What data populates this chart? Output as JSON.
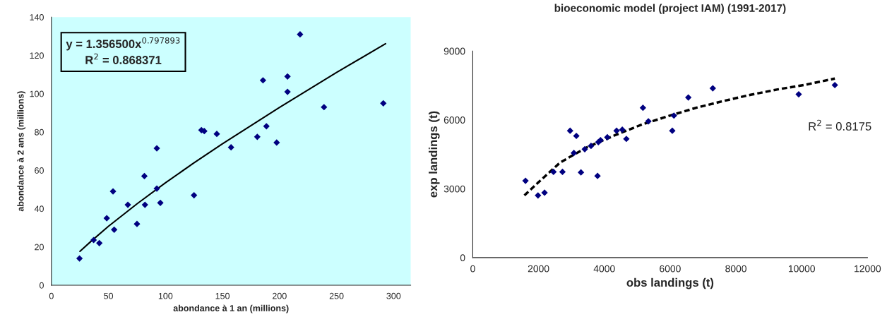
{
  "chart_data": [
    {
      "type": "scatter",
      "xlabel": "abondance à 1 an (millions)",
      "ylabel": "abondance à 2 ans (millions)",
      "xlim": [
        0,
        315
      ],
      "ylim": [
        0,
        140
      ],
      "xticks": [
        0,
        50,
        100,
        150,
        200,
        250,
        300
      ],
      "yticks": [
        0,
        20,
        40,
        60,
        80,
        100,
        120,
        140
      ],
      "grid": false,
      "legend": false,
      "marker": "diamond",
      "annotations": [
        "y = 1.356500x$^{0.797893}$",
        "R$^{2}$ = 0.868371"
      ],
      "series": [
        {
          "color": "#000080",
          "x": [
            24.6,
            37,
            42,
            48.5,
            54,
            55,
            67,
            75,
            81.5,
            82,
            92.4,
            92.4,
            95.5,
            125,
            131.5,
            134,
            145,
            157.5,
            180.5,
            185.5,
            188.5,
            197.5,
            207,
            207,
            218,
            239,
            291
          ],
          "values": [
            14,
            23.6,
            22,
            35,
            49,
            29,
            42,
            32,
            57,
            42,
            71.5,
            50.5,
            43,
            47,
            81,
            80.5,
            79,
            72,
            77.5,
            107,
            83,
            74.5,
            109,
            101,
            131,
            93,
            95
          ]
        },
        {
          "type": "line",
          "color": "#000000",
          "line_style": "solid",
          "marker": "none",
          "x": [
            25,
            35,
            50,
            75,
            100,
            125,
            150,
            200,
            250,
            293
          ],
          "values": [
            17.7,
            23.1,
            30.8,
            42.5,
            53.5,
            63.9,
            73.9,
            92.9,
            111.1,
            126.1
          ]
        }
      ]
    },
    {
      "type": "scatter",
      "title": "bioeconomic model (project IAM) (1991-2017)",
      "xlabel": "obs landings (t)",
      "ylabel": "exp landings (t)",
      "xlim": [
        0,
        12000
      ],
      "ylim": [
        0,
        9000
      ],
      "xticks": [
        0,
        2000,
        4000,
        6000,
        8000,
        10000,
        12000
      ],
      "yticks": [
        0,
        3000,
        6000,
        9000
      ],
      "grid": false,
      "legend": false,
      "marker": "diamond",
      "annotations": [
        "R$^{2}$ = 0.8175"
      ],
      "series": [
        {
          "color": "#000080",
          "x": [
            1603,
            1983,
            2182,
            2454,
            2727,
            2959,
            3074,
            3149,
            3289,
            3405,
            3595,
            3793,
            3818,
            3884,
            4091,
            4372,
            4545,
            4669,
            5173,
            5339,
            6066,
            6115,
            6553,
            7297,
            9909,
            11008
          ],
          "values": [
            3346,
            2709,
            2827,
            3734,
            3734,
            5525,
            4559,
            5301,
            3711,
            4724,
            4865,
            3558,
            5030,
            5113,
            5242,
            5525,
            5572,
            5171,
            6526,
            5937,
            5525,
            6185,
            6974,
            7374,
            7115,
            7516
          ]
        },
        {
          "type": "line",
          "color": "#000000",
          "line_style": "dashed",
          "marker": "none",
          "x": [
            1570,
            1983,
            2661,
            3488,
            4314,
            5140,
            5967,
            6793,
            7619,
            8446,
            9272,
            10099,
            11008
          ],
          "values": [
            2709,
            3263,
            4147,
            4818,
            5325,
            5796,
            6173,
            6526,
            6821,
            7092,
            7327,
            7527,
            7798
          ]
        }
      ]
    }
  ]
}
